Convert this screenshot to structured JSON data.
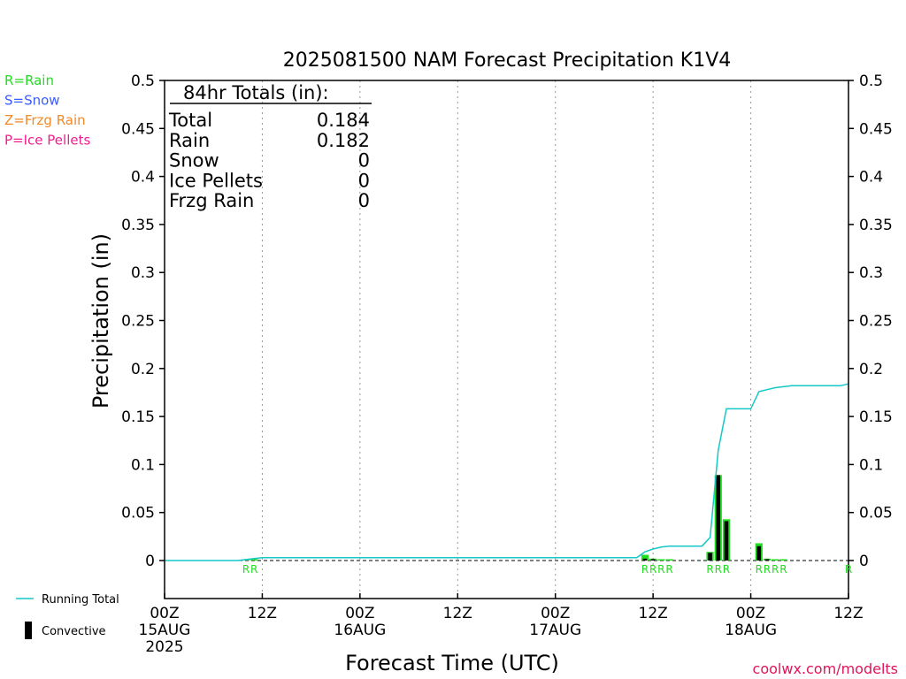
{
  "chart_data": {
    "type": "bar",
    "title": "2025081500 NAM Forecast Precipitation K1V4",
    "xlabel": "Forecast Time (UTC)",
    "ylabel": "Precipitation (in)",
    "ylim": [
      0,
      0.5
    ],
    "xlim_hours": [
      0,
      84
    ],
    "yticks": [
      "0",
      "0.05",
      "0.1",
      "0.15",
      "0.2",
      "0.25",
      "0.3",
      "0.35",
      "0.4",
      "0.45",
      "0.5"
    ],
    "xticks": [
      {
        "hour": 0,
        "lines": [
          "00Z",
          "15AUG",
          "2025"
        ]
      },
      {
        "hour": 12,
        "lines": [
          "12Z"
        ]
      },
      {
        "hour": 24,
        "lines": [
          "00Z",
          "16AUG"
        ]
      },
      {
        "hour": 36,
        "lines": [
          "12Z"
        ]
      },
      {
        "hour": 48,
        "lines": [
          "00Z",
          "17AUG"
        ]
      },
      {
        "hour": 60,
        "lines": [
          "12Z"
        ]
      },
      {
        "hour": 72,
        "lines": [
          "00Z",
          "18AUG"
        ]
      },
      {
        "hour": 84,
        "lines": [
          "12Z"
        ]
      }
    ],
    "grid_vertical_hours": [
      12,
      24,
      36,
      48,
      60,
      72
    ],
    "legend_types": [
      {
        "label": "R=Rain",
        "color": "#22dd22"
      },
      {
        "label": "S=Snow",
        "color": "#3a5cff"
      },
      {
        "label": "Z=Frzg Rain",
        "color": "#f08a2a"
      },
      {
        "label": "P=Ice Pellets",
        "color": "#ee1e90"
      }
    ],
    "legend_series": [
      {
        "label": "Running Total",
        "color": "#14c8c8"
      },
      {
        "label": "Convective",
        "color": "#000000"
      }
    ],
    "totals": {
      "heading": "84hr Totals (in):",
      "rows": [
        {
          "label": "Total",
          "value": "0.184"
        },
        {
          "label": "Rain",
          "value": "0.182"
        },
        {
          "label": "Snow",
          "value": "0"
        },
        {
          "label": "Ice Pellets",
          "value": "0"
        },
        {
          "label": "Frzg Rain",
          "value": "0"
        }
      ]
    },
    "bars": [
      {
        "hour": 10,
        "value": 0.0005,
        "conv": 0.0
      },
      {
        "hour": 11,
        "value": 0.0008,
        "conv": 0.0
      },
      {
        "hour": 59,
        "value": 0.006,
        "conv": 0.002
      },
      {
        "hour": 60,
        "value": 0.002,
        "conv": 0.001
      },
      {
        "hour": 61,
        "value": 0.001,
        "conv": 0.0
      },
      {
        "hour": 62,
        "value": 0.0008,
        "conv": 0.0
      },
      {
        "hour": 67,
        "value": 0.009,
        "conv": 0.008
      },
      {
        "hour": 68,
        "value": 0.089,
        "conv": 0.089
      },
      {
        "hour": 69,
        "value": 0.043,
        "conv": 0.041
      },
      {
        "hour": 73,
        "value": 0.018,
        "conv": 0.015
      },
      {
        "hour": 74,
        "value": 0.002,
        "conv": 0.001
      },
      {
        "hour": 75,
        "value": 0.001,
        "conv": 0.0
      },
      {
        "hour": 76,
        "value": 0.0008,
        "conv": 0.0
      }
    ],
    "running_total": [
      [
        0,
        0
      ],
      [
        9,
        0
      ],
      [
        10,
        0.001
      ],
      [
        11,
        0.002
      ],
      [
        12,
        0.003
      ],
      [
        58,
        0.003
      ],
      [
        59,
        0.009
      ],
      [
        60,
        0.012
      ],
      [
        61,
        0.014
      ],
      [
        62,
        0.015
      ],
      [
        66,
        0.015
      ],
      [
        67,
        0.024
      ],
      [
        68,
        0.115
      ],
      [
        69,
        0.158
      ],
      [
        72,
        0.158
      ],
      [
        73,
        0.176
      ],
      [
        74,
        0.178
      ],
      [
        75,
        0.18
      ],
      [
        76,
        0.181
      ],
      [
        77,
        0.182
      ],
      [
        83,
        0.182
      ],
      [
        84,
        0.184
      ]
    ],
    "ptype_labels": [
      {
        "hour": 10,
        "text": "R"
      },
      {
        "hour": 11,
        "text": "R"
      },
      {
        "hour": 59,
        "text": "R"
      },
      {
        "hour": 60,
        "text": "R"
      },
      {
        "hour": 61,
        "text": "R"
      },
      {
        "hour": 62,
        "text": "R"
      },
      {
        "hour": 67,
        "text": "R"
      },
      {
        "hour": 68,
        "text": "R"
      },
      {
        "hour": 69,
        "text": "R"
      },
      {
        "hour": 73,
        "text": "R"
      },
      {
        "hour": 74,
        "text": "R"
      },
      {
        "hour": 75,
        "text": "R"
      },
      {
        "hour": 76,
        "text": "R"
      },
      {
        "hour": 84,
        "text": "R"
      }
    ],
    "colors": {
      "rain": "#22dd22",
      "running_total": "#14c8c8",
      "convective": "#000000",
      "grid": "#999999",
      "credit": "#e0145a"
    },
    "credit": "coolwx.com/modelts"
  }
}
